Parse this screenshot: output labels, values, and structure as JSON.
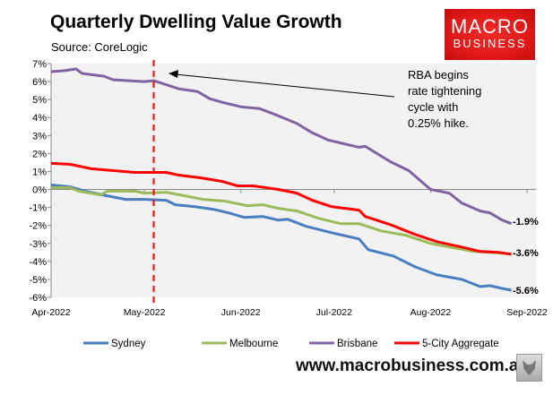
{
  "chart_data": {
    "type": "line",
    "title": "Quarterly Dwelling Value Growth",
    "subtitle": "Source: CoreLogic",
    "xlabel": "",
    "ylabel": "",
    "ylim": [
      -6,
      7
    ],
    "yticks": [
      "7%",
      "6%",
      "5%",
      "4%",
      "3%",
      "2%",
      "1%",
      "0%",
      "-1%",
      "-2%",
      "-3%",
      "-4%",
      "-5%",
      "-6%"
    ],
    "xlim": [
      "2022-04-01",
      "2022-09-01"
    ],
    "xticks": [
      {
        "date": "2022-04-01",
        "label": "Apr-2022"
      },
      {
        "date": "2022-05-01",
        "label": "May-2022"
      },
      {
        "date": "2022-06-01",
        "label": "Jun-2022"
      },
      {
        "date": "2022-07-01",
        "label": "Jul-2022"
      },
      {
        "date": "2022-08-01",
        "label": "Aug-2022"
      },
      {
        "date": "2022-09-01",
        "label": "Sep-2022"
      }
    ],
    "grid": false,
    "legend": "bottom",
    "series": [
      {
        "name": "Sydney",
        "color": "#4a7ebf",
        "points": [
          [
            "2022-04-01",
            0.25
          ],
          [
            "2022-04-07",
            0.15
          ],
          [
            "2022-04-12",
            -0.1
          ],
          [
            "2022-04-19",
            -0.35
          ],
          [
            "2022-04-25",
            -0.55
          ],
          [
            "2022-05-01",
            -0.55
          ],
          [
            "2022-05-08",
            -0.6
          ],
          [
            "2022-05-11",
            -0.85
          ],
          [
            "2022-05-17",
            -0.95
          ],
          [
            "2022-05-23",
            -1.1
          ],
          [
            "2022-05-28",
            -1.3
          ],
          [
            "2022-06-02",
            -1.55
          ],
          [
            "2022-06-08",
            -1.5
          ],
          [
            "2022-06-13",
            -1.7
          ],
          [
            "2022-06-16",
            -1.65
          ],
          [
            "2022-06-22",
            -2.05
          ],
          [
            "2022-06-30",
            -2.4
          ],
          [
            "2022-07-09",
            -2.75
          ],
          [
            "2022-07-12",
            -3.35
          ],
          [
            "2022-07-20",
            -3.7
          ],
          [
            "2022-07-27",
            -4.3
          ],
          [
            "2022-08-03",
            -4.75
          ],
          [
            "2022-08-11",
            -5.0
          ],
          [
            "2022-08-17",
            -5.4
          ],
          [
            "2022-08-20",
            -5.35
          ],
          [
            "2022-08-24",
            -5.5
          ],
          [
            "2022-08-27",
            -5.6
          ]
        ]
      },
      {
        "name": "Melbourne",
        "color": "#9bbb59",
        "points": [
          [
            "2022-04-01",
            0.1
          ],
          [
            "2022-04-07",
            0.1
          ],
          [
            "2022-04-10",
            -0.1
          ],
          [
            "2022-04-17",
            -0.3
          ],
          [
            "2022-04-19",
            -0.1
          ],
          [
            "2022-04-28",
            -0.1
          ],
          [
            "2022-05-01",
            -0.2
          ],
          [
            "2022-05-08",
            -0.15
          ],
          [
            "2022-05-14",
            -0.35
          ],
          [
            "2022-05-20",
            -0.55
          ],
          [
            "2022-05-27",
            -0.65
          ],
          [
            "2022-06-03",
            -0.9
          ],
          [
            "2022-06-08",
            -0.85
          ],
          [
            "2022-06-13",
            -1.05
          ],
          [
            "2022-06-19",
            -1.2
          ],
          [
            "2022-06-26",
            -1.6
          ],
          [
            "2022-07-03",
            -1.9
          ],
          [
            "2022-07-09",
            -1.9
          ],
          [
            "2022-07-16",
            -2.3
          ],
          [
            "2022-07-24",
            -2.55
          ],
          [
            "2022-08-01",
            -3.0
          ],
          [
            "2022-08-07",
            -3.2
          ],
          [
            "2022-08-15",
            -3.45
          ],
          [
            "2022-08-20",
            -3.5
          ],
          [
            "2022-08-27",
            -3.6
          ]
        ]
      },
      {
        "name": "Brisbane",
        "color": "#8064a2",
        "points": [
          [
            "2022-04-01",
            6.55
          ],
          [
            "2022-04-05",
            6.6
          ],
          [
            "2022-04-09",
            6.7
          ],
          [
            "2022-04-11",
            6.45
          ],
          [
            "2022-04-18",
            6.3
          ],
          [
            "2022-04-21",
            6.1
          ],
          [
            "2022-05-01",
            6.0
          ],
          [
            "2022-05-04",
            6.05
          ],
          [
            "2022-05-12",
            5.6
          ],
          [
            "2022-05-18",
            5.45
          ],
          [
            "2022-05-22",
            5.05
          ],
          [
            "2022-05-26",
            4.85
          ],
          [
            "2022-06-01",
            4.6
          ],
          [
            "2022-06-07",
            4.5
          ],
          [
            "2022-06-13",
            4.1
          ],
          [
            "2022-06-19",
            3.67
          ],
          [
            "2022-06-24",
            3.15
          ],
          [
            "2022-06-29",
            2.75
          ],
          [
            "2022-07-09",
            2.35
          ],
          [
            "2022-07-11",
            2.4
          ],
          [
            "2022-07-19",
            1.55
          ],
          [
            "2022-07-25",
            1.05
          ],
          [
            "2022-08-01",
            0.0
          ],
          [
            "2022-08-07",
            -0.2
          ],
          [
            "2022-08-11",
            -0.75
          ],
          [
            "2022-08-17",
            -1.2
          ],
          [
            "2022-08-20",
            -1.3
          ],
          [
            "2022-08-24",
            -1.7
          ],
          [
            "2022-08-27",
            -1.9
          ]
        ]
      },
      {
        "name": "5-City Aggregate",
        "color": "#ff0000",
        "points": [
          [
            "2022-04-01",
            1.45
          ],
          [
            "2022-04-07",
            1.4
          ],
          [
            "2022-04-14",
            1.15
          ],
          [
            "2022-04-21",
            1.05
          ],
          [
            "2022-04-28",
            0.95
          ],
          [
            "2022-05-08",
            0.95
          ],
          [
            "2022-05-12",
            0.8
          ],
          [
            "2022-05-19",
            0.65
          ],
          [
            "2022-05-26",
            0.45
          ],
          [
            "2022-05-31",
            0.2
          ],
          [
            "2022-06-05",
            0.2
          ],
          [
            "2022-06-13",
            0.0
          ],
          [
            "2022-06-19",
            -0.2
          ],
          [
            "2022-06-24",
            -0.6
          ],
          [
            "2022-06-30",
            -0.95
          ],
          [
            "2022-07-09",
            -1.15
          ],
          [
            "2022-07-11",
            -1.5
          ],
          [
            "2022-07-19",
            -1.95
          ],
          [
            "2022-07-27",
            -2.5
          ],
          [
            "2022-08-03",
            -2.9
          ],
          [
            "2022-08-11",
            -3.2
          ],
          [
            "2022-08-17",
            -3.45
          ],
          [
            "2022-08-23",
            -3.5
          ],
          [
            "2022-08-27",
            -3.6
          ]
        ]
      }
    ],
    "end_labels": [
      {
        "series": "Brisbane",
        "value": -1.9,
        "label": "-1.9%"
      },
      {
        "series": "5-City Aggregate",
        "value": -3.6,
        "label": "-3.6%"
      },
      {
        "series": "Sydney",
        "value": -5.6,
        "label": "-5.6%"
      }
    ],
    "vertical_marker": {
      "date": "2022-05-04",
      "color": "#ff0000",
      "style": "dashed"
    },
    "annotation": {
      "lines": [
        "RBA begins",
        "rate tightening",
        "cycle with",
        "0.25% hike."
      ]
    }
  },
  "logo": {
    "line1": "MACRO",
    "line2": "BUSINESS"
  },
  "footer": {
    "url": "www.macrobusiness.com.au"
  }
}
